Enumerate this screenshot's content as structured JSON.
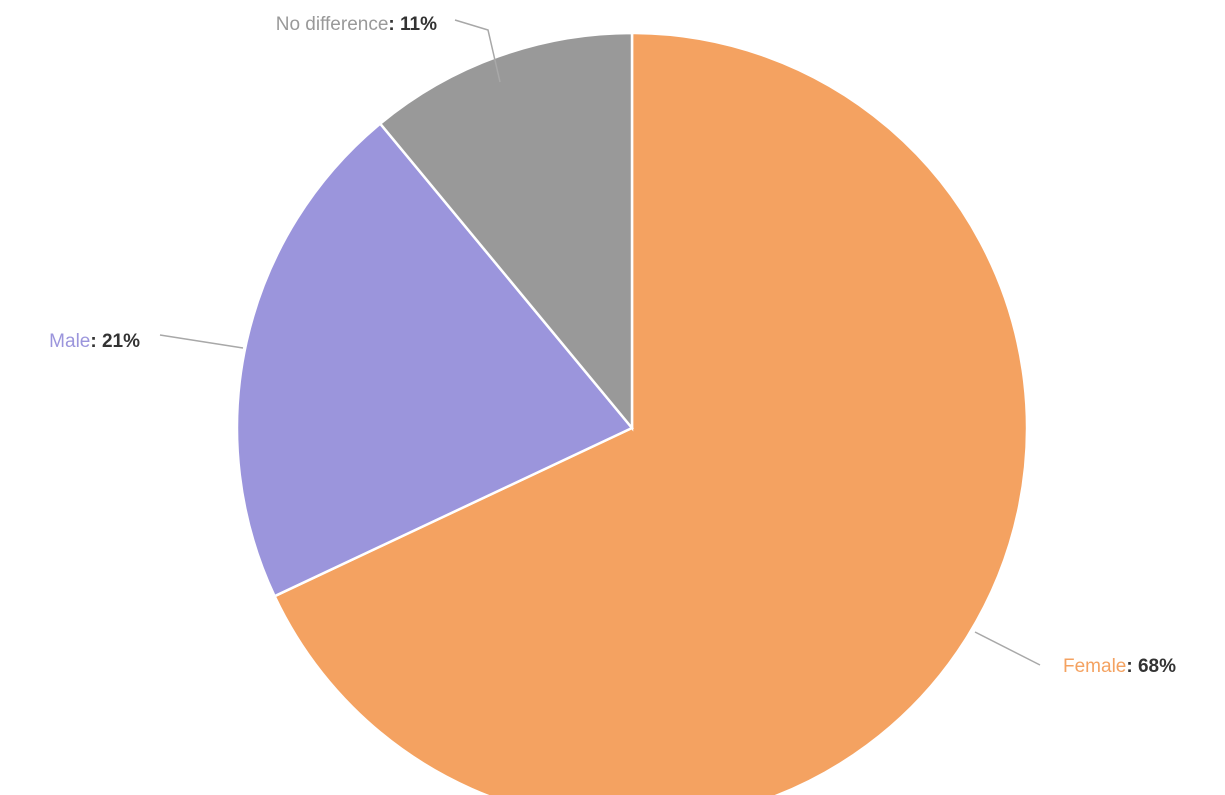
{
  "chart_data": {
    "type": "pie",
    "title": "",
    "start_angle_deg": 0,
    "direction": "clockwise",
    "slices": [
      {
        "name": "Female",
        "value": 68,
        "label_value": "68%",
        "color": "#F4A261"
      },
      {
        "name": "Male",
        "value": 21,
        "label_value": "21%",
        "color": "#9B95DC"
      },
      {
        "name": "No difference",
        "value": 11,
        "label_value": "11%",
        "color": "#999999"
      }
    ],
    "label_separator": ": "
  }
}
